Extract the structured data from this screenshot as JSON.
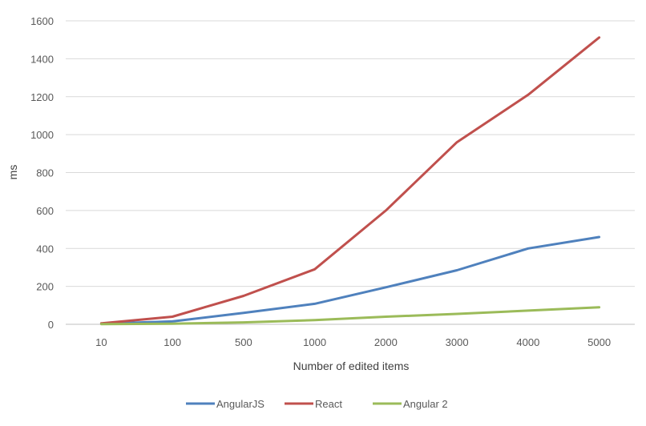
{
  "chart_data": {
    "type": "line",
    "xlabel": "Number of edited items",
    "ylabel": "ms",
    "ylim": [
      0,
      1600
    ],
    "yticks": [
      0,
      200,
      400,
      600,
      800,
      1000,
      1200,
      1400,
      1600
    ],
    "grid": "horizontal",
    "legend_position": "bottom",
    "categories": [
      "10",
      "100",
      "500",
      "1000",
      "2000",
      "3000",
      "4000",
      "5000"
    ],
    "series": [
      {
        "name": "AngularJS",
        "color": "#4f81bd",
        "values": [
          3,
          15,
          60,
          108,
          195,
          285,
          400,
          460
        ]
      },
      {
        "name": "React",
        "color": "#c0504d",
        "values": [
          5,
          40,
          150,
          290,
          600,
          960,
          1210,
          1512
        ]
      },
      {
        "name": "Angular 2",
        "color": "#9bbb59",
        "values": [
          1,
          3,
          10,
          22,
          40,
          55,
          72,
          90
        ]
      }
    ]
  }
}
